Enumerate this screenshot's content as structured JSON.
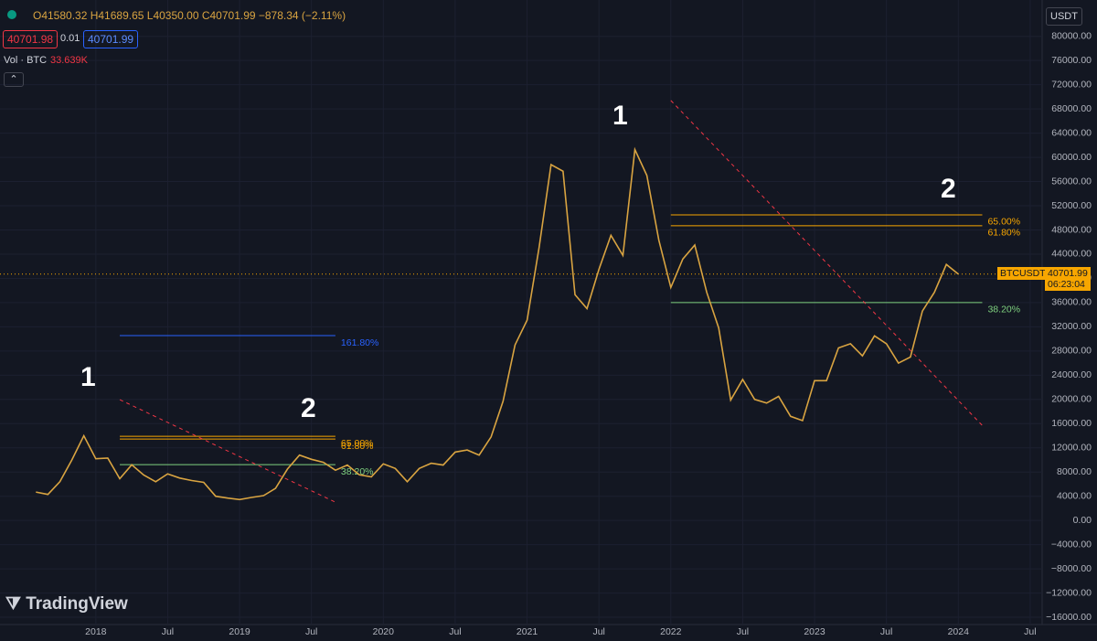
{
  "ui": {
    "ohlc": "O41580.32 H41689.65 L40350.00 C40701.99 −878.34 (−2.11%)",
    "bid": "40701.98",
    "spread": "0.01",
    "ask": "40701.99",
    "vol_label": "Vol · BTC",
    "vol_value": "33.639K",
    "currency": "USDT",
    "symbol_tag": "BTCUSDT",
    "last_price_label": "40701.99",
    "countdown": "06:23:04",
    "brand": "TradingView",
    "wave_labels": [
      "1",
      "2",
      "1",
      "2"
    ]
  },
  "chart_data": {
    "type": "line",
    "color": "#d9a441",
    "x": [
      "2017-08",
      "2017-09",
      "2017-10",
      "2017-11",
      "2017-12",
      "2018-01",
      "2018-02",
      "2018-03",
      "2018-04",
      "2018-05",
      "2018-06",
      "2018-07",
      "2018-08",
      "2018-09",
      "2018-10",
      "2018-11",
      "2018-12",
      "2019-01",
      "2019-02",
      "2019-03",
      "2019-04",
      "2019-05",
      "2019-06",
      "2019-07",
      "2019-08",
      "2019-09",
      "2019-10",
      "2019-11",
      "2019-12",
      "2020-01",
      "2020-02",
      "2020-03",
      "2020-04",
      "2020-05",
      "2020-06",
      "2020-07",
      "2020-08",
      "2020-09",
      "2020-10",
      "2020-11",
      "2020-12",
      "2021-01",
      "2021-02",
      "2021-03",
      "2021-04",
      "2021-05",
      "2021-06",
      "2021-07",
      "2021-08",
      "2021-09",
      "2021-10",
      "2021-11",
      "2021-12",
      "2022-01",
      "2022-02",
      "2022-03",
      "2022-04",
      "2022-05",
      "2022-06",
      "2022-07",
      "2022-08",
      "2022-09",
      "2022-10",
      "2022-11",
      "2022-12",
      "2023-01",
      "2023-02",
      "2023-03",
      "2023-04",
      "2023-05",
      "2023-06",
      "2023-07",
      "2023-08",
      "2023-09",
      "2023-10",
      "2023-11",
      "2023-12",
      "2024-01"
    ],
    "values": [
      4700,
      4300,
      6400,
      10000,
      14000,
      10200,
      10300,
      6900,
      9200,
      7500,
      6400,
      7700,
      7000,
      6600,
      6300,
      4000,
      3700,
      3450,
      3800,
      4100,
      5300,
      8500,
      10800,
      10100,
      9600,
      8300,
      9150,
      7550,
      7200,
      9350,
      8600,
      6400,
      8600,
      9450,
      9150,
      11300,
      11650,
      10800,
      13800,
      19700,
      29000,
      33100,
      45100,
      58800,
      57700,
      37300,
      35000,
      41500,
      47100,
      43800,
      61300,
      57000,
      46300,
      38500,
      43200,
      45500,
      37700,
      31800,
      19900,
      23300,
      20000,
      19400,
      20500,
      17200,
      16500,
      23100,
      23100,
      28500,
      29200,
      27200,
      30500,
      29200,
      26000,
      27000,
      34600,
      37700,
      42300,
      40700
    ],
    "xlim": [
      "2017-05",
      "2024-08"
    ],
    "xticks": [
      {
        "value": "2018-01",
        "label": "2018"
      },
      {
        "value": "2018-07",
        "label": "Jul"
      },
      {
        "value": "2019-01",
        "label": "2019"
      },
      {
        "value": "2019-07",
        "label": "Jul"
      },
      {
        "value": "2020-01",
        "label": "2020"
      },
      {
        "value": "2020-07",
        "label": "Jul"
      },
      {
        "value": "2021-01",
        "label": "2021"
      },
      {
        "value": "2021-07",
        "label": "Jul"
      },
      {
        "value": "2022-01",
        "label": "2022"
      },
      {
        "value": "2022-07",
        "label": "Jul"
      },
      {
        "value": "2023-01",
        "label": "2023"
      },
      {
        "value": "2023-07",
        "label": "Jul"
      },
      {
        "value": "2024-01",
        "label": "2024"
      },
      {
        "value": "2024-07",
        "label": "Jul"
      }
    ],
    "ylim": [
      -17200,
      86000
    ],
    "yticks": [
      {
        "value": 80000,
        "label": "80000.00"
      },
      {
        "value": 76000,
        "label": "76000.00"
      },
      {
        "value": 72000,
        "label": "72000.00"
      },
      {
        "value": 68000,
        "label": "68000.00"
      },
      {
        "value": 64000,
        "label": "64000.00"
      },
      {
        "value": 60000,
        "label": "60000.00"
      },
      {
        "value": 56000,
        "label": "56000.00"
      },
      {
        "value": 52000,
        "label": "52000.00"
      },
      {
        "value": 48000,
        "label": "48000.00"
      },
      {
        "value": 44000,
        "label": "44000.00"
      },
      {
        "value": 40000,
        "label": "40000.00"
      },
      {
        "value": 36000,
        "label": "36000.00"
      },
      {
        "value": 32000,
        "label": "32000.00"
      },
      {
        "value": 28000,
        "label": "28000.00"
      },
      {
        "value": 24000,
        "label": "24000.00"
      },
      {
        "value": 20000,
        "label": "20000.00"
      },
      {
        "value": 16000,
        "label": "16000.00"
      },
      {
        "value": 12000,
        "label": "12000.00"
      },
      {
        "value": 8000,
        "label": "8000.00"
      },
      {
        "value": 4000,
        "label": "4000.00"
      },
      {
        "value": 0,
        "label": "0.00"
      },
      {
        "value": -4000,
        "label": "−4000.00"
      },
      {
        "value": -8000,
        "label": "−8000.00"
      },
      {
        "value": -12000,
        "label": "−12000.00"
      },
      {
        "value": -16000,
        "label": "−16000.00"
      }
    ],
    "last_price": 40701.99,
    "levels": [
      {
        "label": "161.80%",
        "value": 30550,
        "start": "2018-03",
        "end": "2019-09",
        "color": "#2962ff"
      },
      {
        "label": "65.00%",
        "value": 13900,
        "start": "2018-03",
        "end": "2019-09",
        "color": "#f7a600"
      },
      {
        "label": "61.80%",
        "value": 13460,
        "start": "2018-03",
        "end": "2019-09",
        "color": "#f7a600"
      },
      {
        "label": "38.20%",
        "value": 9220,
        "start": "2018-03",
        "end": "2019-09",
        "color": "#7fd17f"
      },
      {
        "label": "65.00%",
        "value": 50500,
        "start": "2022-01",
        "end": "2024-03",
        "color": "#f7a600"
      },
      {
        "label": "61.80%",
        "value": 48700,
        "start": "2022-01",
        "end": "2024-03",
        "color": "#f7a600"
      },
      {
        "label": "38.20%",
        "value": 36000,
        "start": "2022-01",
        "end": "2024-03",
        "color": "#7fd17f"
      }
    ],
    "trend_lines": [
      {
        "start": "2018-03",
        "end": "2019-09",
        "from": 19960,
        "to": 3020
      },
      {
        "start": "2022-01",
        "end": "2024-03",
        "from": 69400,
        "to": 15700
      }
    ]
  }
}
